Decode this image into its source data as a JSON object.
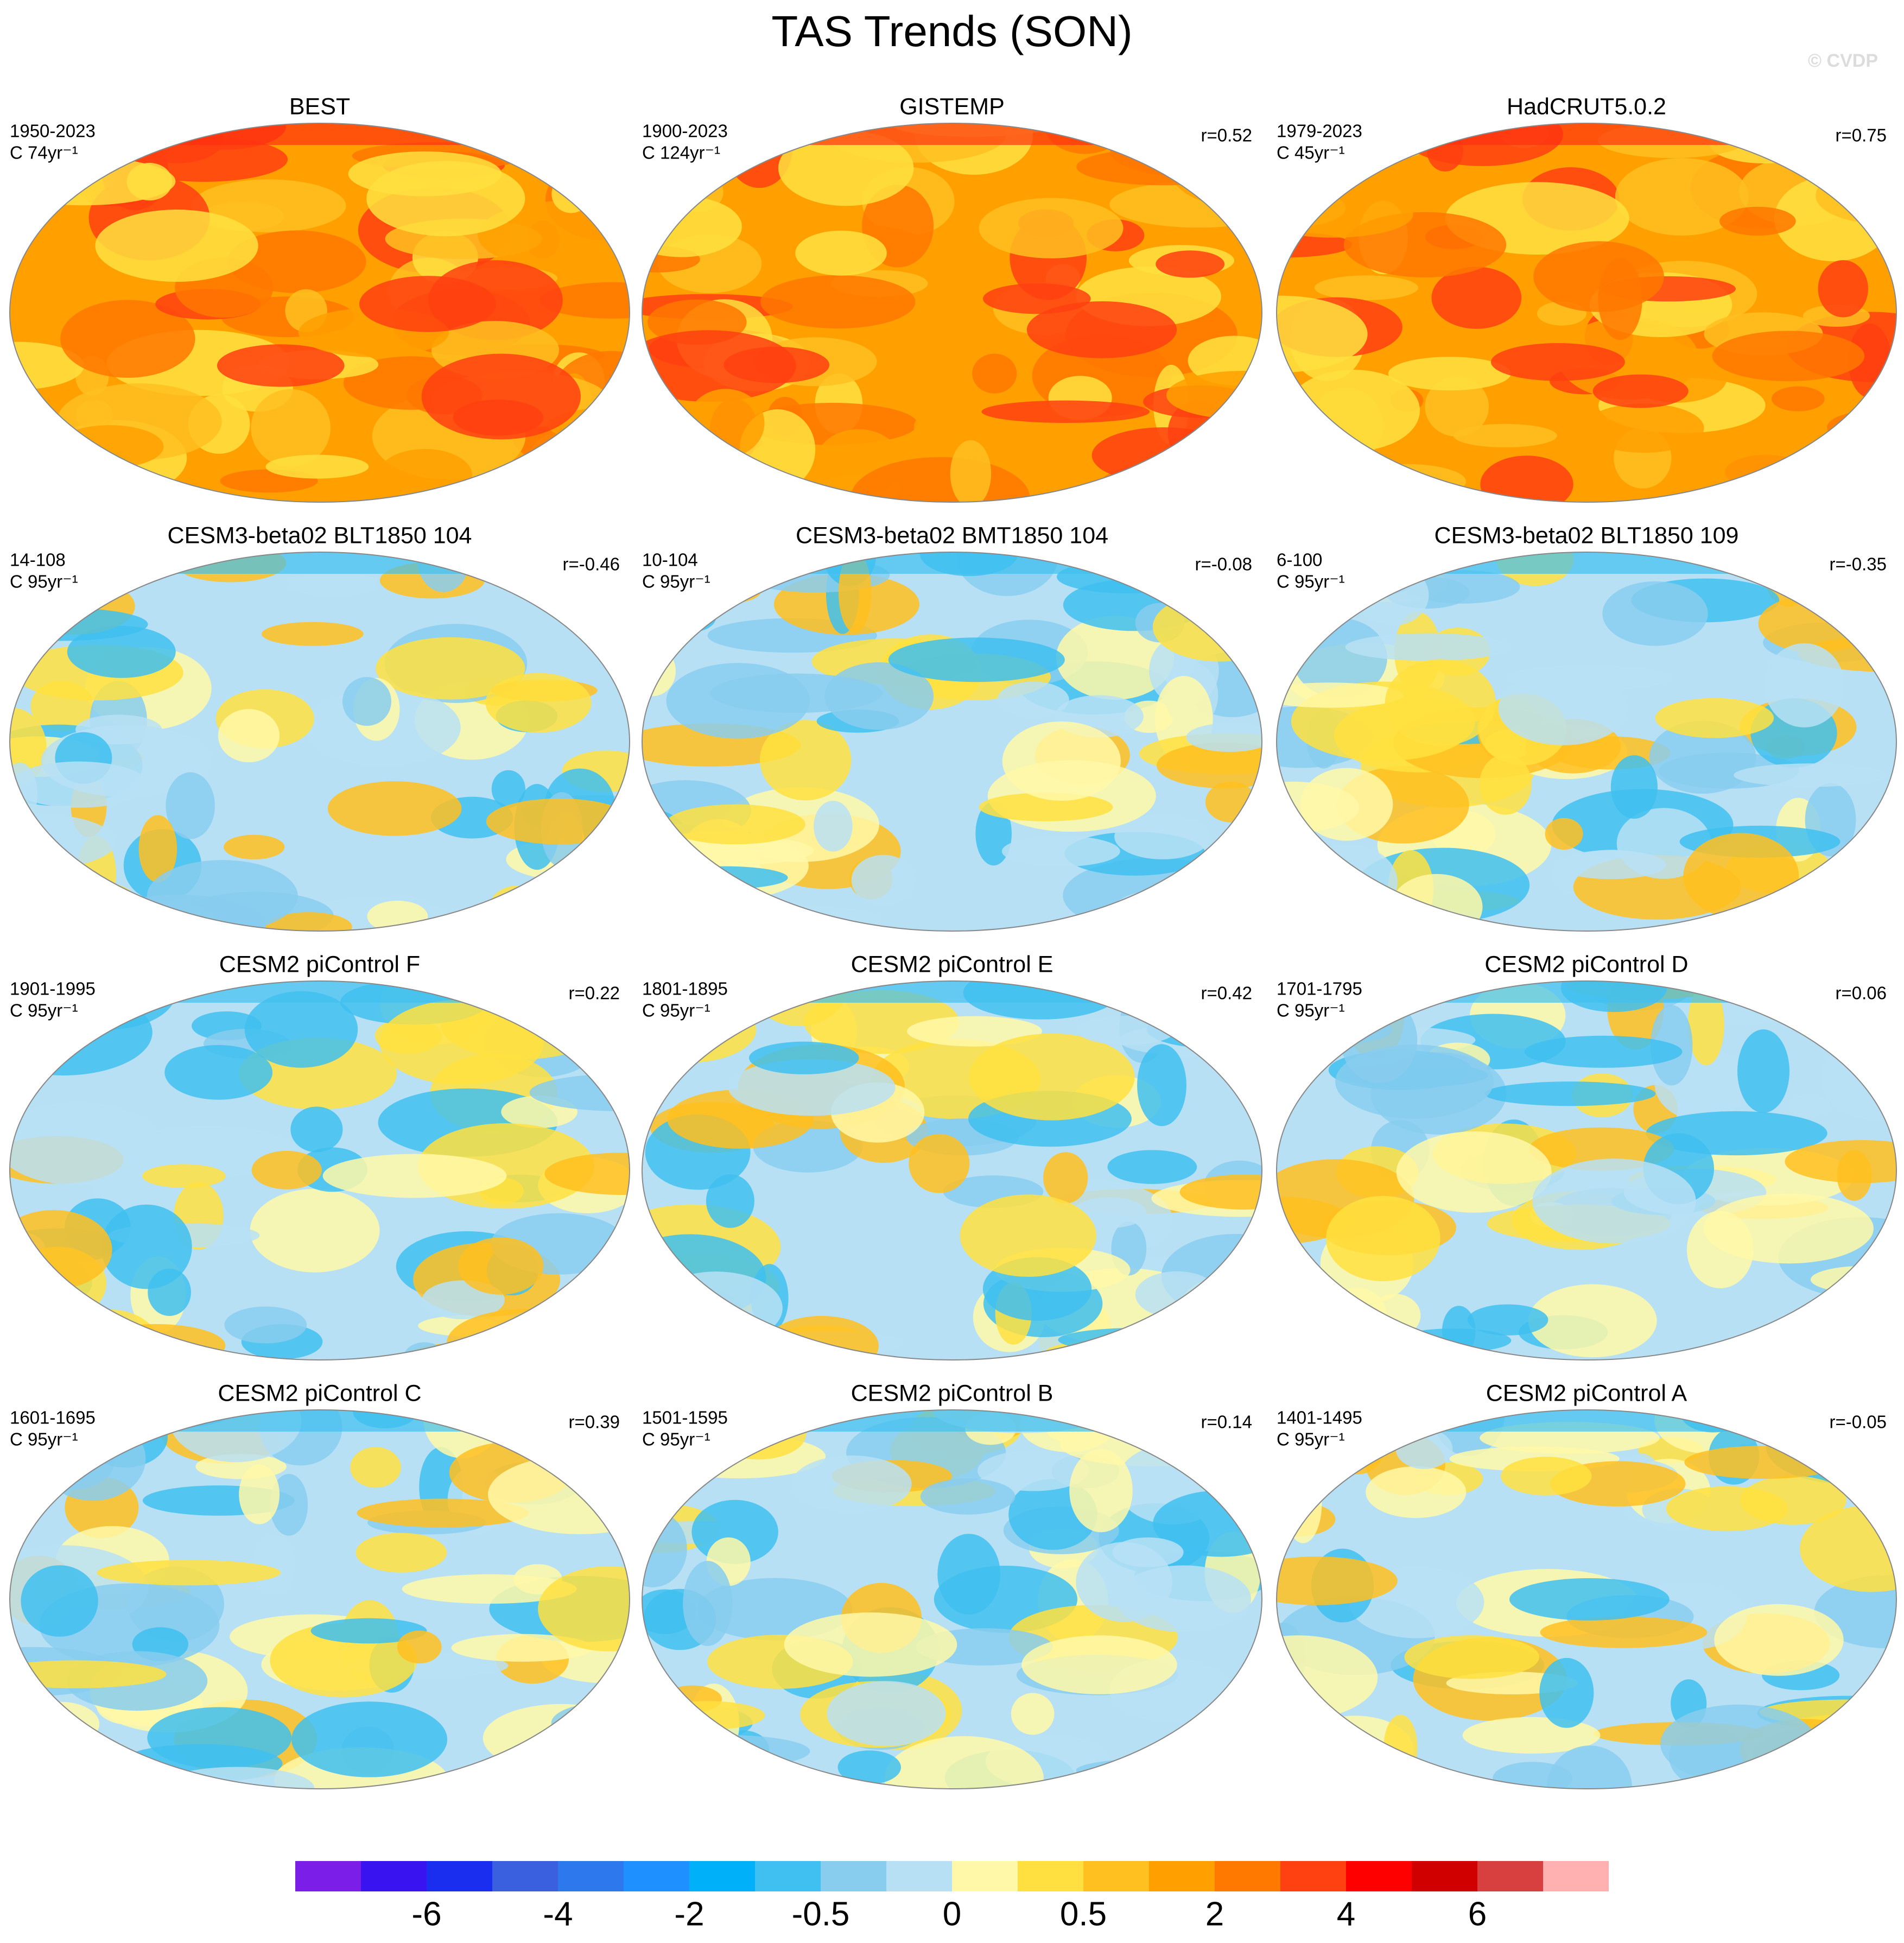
{
  "title": "TAS Trends (SON)",
  "watermark": "© CVDP",
  "panels": [
    {
      "title": "BEST",
      "period": "1950-2023",
      "units": "C 74yr⁻¹"
    },
    {
      "title": "GISTEMP",
      "period": "1900-2023",
      "units": "C 124yr⁻¹",
      "r": "r=0.52"
    },
    {
      "title": "HadCRUT5.0.2",
      "period": "1979-2023",
      "units": "C 45yr⁻¹",
      "r": "r=0.75"
    },
    {
      "title": "CESM3-beta02 BLT1850 104",
      "period": "14-108",
      "units": "C 95yr⁻¹",
      "r": "r=-0.46"
    },
    {
      "title": "CESM3-beta02 BMT1850 104",
      "period": "10-104",
      "units": "C 95yr⁻¹",
      "r": "r=-0.08"
    },
    {
      "title": "CESM3-beta02 BLT1850 109",
      "period": "6-100",
      "units": "C 95yr⁻¹",
      "r": "r=-0.35"
    },
    {
      "title": "CESM2 piControl F",
      "period": "1901-1995",
      "units": "C 95yr⁻¹",
      "r": "r=0.22"
    },
    {
      "title": "CESM2 piControl E",
      "period": "1801-1895",
      "units": "C 95yr⁻¹",
      "r": "r=0.42"
    },
    {
      "title": "CESM2 piControl D",
      "period": "1701-1795",
      "units": "C 95yr⁻¹",
      "r": "r=0.06"
    },
    {
      "title": "CESM2 piControl C",
      "period": "1601-1695",
      "units": "C 95yr⁻¹",
      "r": "r=0.39"
    },
    {
      "title": "CESM2 piControl B",
      "period": "1501-1595",
      "units": "C 95yr⁻¹",
      "r": "r=0.14"
    },
    {
      "title": "CESM2 piControl A",
      "period": "1401-1495",
      "units": "C 95yr⁻¹",
      "r": "r=-0.05"
    }
  ],
  "colorbar": {
    "colors": [
      "#7a1ee8",
      "#3a14f0",
      "#1a2ef0",
      "#3a60e0",
      "#2c78ec",
      "#1e90ff",
      "#00b0f8",
      "#40c0f0",
      "#88ccee",
      "#b8e0f4",
      "#fff8a8",
      "#ffe040",
      "#ffc020",
      "#ffa000",
      "#ff7800",
      "#ff4010",
      "#ff0000",
      "#d00000",
      "#d84040",
      "#ffb0b0"
    ],
    "ticks": [
      "-6",
      "-4",
      "-2",
      "-0.5",
      "0",
      "0.5",
      "2",
      "4",
      "6"
    ]
  }
}
